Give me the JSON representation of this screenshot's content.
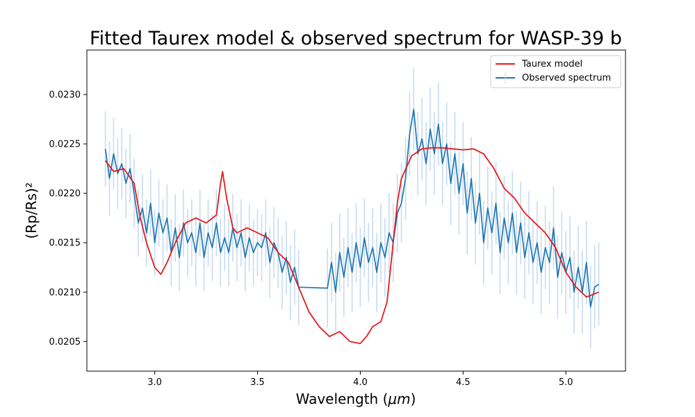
{
  "chart_data": {
    "type": "line",
    "title": "Fitted Taurex model & observed spectrum for WASP-39 b",
    "xlabel_main": "Wavelength (",
    "xlabel_unit": "μm",
    "xlabel_close": ")",
    "ylabel": "(Rp/Rs)²",
    "xlim": [
      2.67,
      5.29
    ],
    "ylim": [
      0.0202,
      0.02345
    ],
    "xticks": [
      "3.0",
      "3.5",
      "4.0",
      "4.5",
      "5.0"
    ],
    "yticks": [
      "0.0205",
      "0.0210",
      "0.0215",
      "0.0220",
      "0.0225",
      "0.0230"
    ],
    "legend_position": "top-right",
    "series": [
      {
        "name": "Taurex model",
        "color": "#e41a1c",
        "style": "line",
        "x": [
          2.76,
          2.8,
          2.85,
          2.9,
          2.93,
          2.96,
          3.0,
          3.03,
          3.06,
          3.1,
          3.15,
          3.2,
          3.25,
          3.3,
          3.32,
          3.33,
          3.35,
          3.38,
          3.4,
          3.45,
          3.5,
          3.55,
          3.6,
          3.65,
          3.7,
          3.75,
          3.8,
          3.85,
          3.9,
          3.95,
          4.0,
          4.03,
          4.06,
          4.1,
          4.13,
          4.16,
          4.18,
          4.2,
          4.25,
          4.3,
          4.35,
          4.4,
          4.45,
          4.5,
          4.55,
          4.6,
          4.65,
          4.7,
          4.75,
          4.8,
          4.85,
          4.9,
          4.95,
          5.0,
          5.05,
          5.1,
          5.16
        ],
        "y": [
          0.02233,
          0.02222,
          0.02225,
          0.0221,
          0.02175,
          0.0215,
          0.02125,
          0.02118,
          0.0213,
          0.0215,
          0.0217,
          0.02175,
          0.0217,
          0.02178,
          0.0221,
          0.02222,
          0.02195,
          0.02165,
          0.0216,
          0.02165,
          0.0216,
          0.02155,
          0.0214,
          0.0213,
          0.02105,
          0.0208,
          0.02065,
          0.02055,
          0.0206,
          0.0205,
          0.02048,
          0.02055,
          0.02065,
          0.0207,
          0.0209,
          0.0215,
          0.0219,
          0.02215,
          0.02238,
          0.02245,
          0.02246,
          0.02246,
          0.02245,
          0.02244,
          0.02245,
          0.0224,
          0.02225,
          0.02205,
          0.02195,
          0.0218,
          0.0217,
          0.0216,
          0.02145,
          0.0212,
          0.02105,
          0.02095,
          0.021
        ]
      },
      {
        "name": "Observed spectrum",
        "color": "#1f77b4",
        "errcolor": "#c6dbef",
        "style": "errorbar",
        "x": [
          2.76,
          2.78,
          2.8,
          2.82,
          2.84,
          2.86,
          2.88,
          2.9,
          2.92,
          2.94,
          2.96,
          2.98,
          3.0,
          3.02,
          3.04,
          3.06,
          3.08,
          3.1,
          3.12,
          3.14,
          3.16,
          3.18,
          3.2,
          3.22,
          3.24,
          3.26,
          3.28,
          3.3,
          3.32,
          3.34,
          3.36,
          3.38,
          3.4,
          3.42,
          3.44,
          3.46,
          3.48,
          3.5,
          3.52,
          3.54,
          3.56,
          3.58,
          3.6,
          3.62,
          3.64,
          3.66,
          3.68,
          3.7,
          3.84,
          3.86,
          3.88,
          3.9,
          3.92,
          3.94,
          3.96,
          3.98,
          4.0,
          4.02,
          4.04,
          4.06,
          4.08,
          4.1,
          4.12,
          4.14,
          4.16,
          4.18,
          4.2,
          4.22,
          4.24,
          4.26,
          4.28,
          4.3,
          4.32,
          4.34,
          4.36,
          4.38,
          4.4,
          4.42,
          4.44,
          4.46,
          4.48,
          4.5,
          4.52,
          4.54,
          4.56,
          4.58,
          4.6,
          4.62,
          4.64,
          4.66,
          4.68,
          4.7,
          4.72,
          4.74,
          4.76,
          4.78,
          4.8,
          4.82,
          4.84,
          4.86,
          4.88,
          4.9,
          4.92,
          4.94,
          4.96,
          4.98,
          5.0,
          5.02,
          5.04,
          5.06,
          5.08,
          5.1,
          5.12,
          5.14,
          5.16
        ],
        "y": [
          0.02245,
          0.02215,
          0.0224,
          0.0222,
          0.0223,
          0.0221,
          0.02225,
          0.022,
          0.0217,
          0.02185,
          0.0216,
          0.0219,
          0.0215,
          0.0218,
          0.0216,
          0.02175,
          0.0214,
          0.02165,
          0.02135,
          0.0217,
          0.0215,
          0.0216,
          0.0214,
          0.0217,
          0.02135,
          0.0216,
          0.02145,
          0.0217,
          0.0214,
          0.02155,
          0.0214,
          0.02165,
          0.02145,
          0.0216,
          0.02135,
          0.02155,
          0.0214,
          0.0215,
          0.02145,
          0.0216,
          0.0213,
          0.0215,
          0.0214,
          0.0212,
          0.02135,
          0.0211,
          0.02125,
          0.02105,
          0.02104,
          0.0213,
          0.021,
          0.0214,
          0.02115,
          0.02145,
          0.0212,
          0.0215,
          0.02125,
          0.02155,
          0.0213,
          0.02145,
          0.0212,
          0.0215,
          0.02135,
          0.0216,
          0.0215,
          0.0218,
          0.0219,
          0.02215,
          0.0226,
          0.02285,
          0.0224,
          0.02255,
          0.0223,
          0.02265,
          0.0224,
          0.0227,
          0.0223,
          0.0225,
          0.0221,
          0.0224,
          0.022,
          0.0223,
          0.0218,
          0.02215,
          0.0217,
          0.022,
          0.0215,
          0.02185,
          0.0216,
          0.0219,
          0.0214,
          0.02175,
          0.0215,
          0.0218,
          0.0214,
          0.0217,
          0.02135,
          0.0216,
          0.0213,
          0.0215,
          0.0212,
          0.02145,
          0.0213,
          0.02165,
          0.02115,
          0.0214,
          0.0212,
          0.02135,
          0.021,
          0.02125,
          0.021,
          0.0213,
          0.02085,
          0.02105,
          0.02108
        ],
        "err": [
          0.00038,
          0.00038,
          0.00036,
          0.00036,
          0.00036,
          0.00035,
          0.00035,
          0.00035,
          0.00034,
          0.00034,
          0.00034,
          0.00034,
          0.00034,
          0.00034,
          0.00034,
          0.00034,
          0.00034,
          0.00034,
          0.00034,
          0.00034,
          0.00034,
          0.00034,
          0.00034,
          0.00034,
          0.00034,
          0.00034,
          0.00034,
          0.00034,
          0.00034,
          0.00034,
          0.00034,
          0.00034,
          0.00034,
          0.00034,
          0.00034,
          0.00034,
          0.00034,
          0.00034,
          0.00034,
          0.00034,
          0.00036,
          0.00036,
          0.00036,
          0.00037,
          0.00037,
          0.00038,
          0.00038,
          0.00038,
          0.0004,
          0.0004,
          0.0004,
          0.0004,
          0.0004,
          0.0004,
          0.0004,
          0.0004,
          0.0004,
          0.0004,
          0.0004,
          0.0004,
          0.0004,
          0.0004,
          0.0004,
          0.0004,
          0.0004,
          0.0004,
          0.0004,
          0.00042,
          0.00042,
          0.00042,
          0.00042,
          0.00042,
          0.00042,
          0.00042,
          0.00042,
          0.00042,
          0.00042,
          0.00042,
          0.00042,
          0.00042,
          0.00042,
          0.00042,
          0.00042,
          0.00042,
          0.00042,
          0.00042,
          0.00042,
          0.00042,
          0.00042,
          0.00042,
          0.00042,
          0.00042,
          0.00042,
          0.00042,
          0.00042,
          0.00042,
          0.00042,
          0.00042,
          0.00042,
          0.00042,
          0.00042,
          0.00042,
          0.00042,
          0.00042,
          0.00042,
          0.00042,
          0.00042,
          0.00042,
          0.00042,
          0.00042,
          0.00042,
          0.00042,
          0.00042,
          0.00042,
          0.00042
        ]
      }
    ]
  }
}
